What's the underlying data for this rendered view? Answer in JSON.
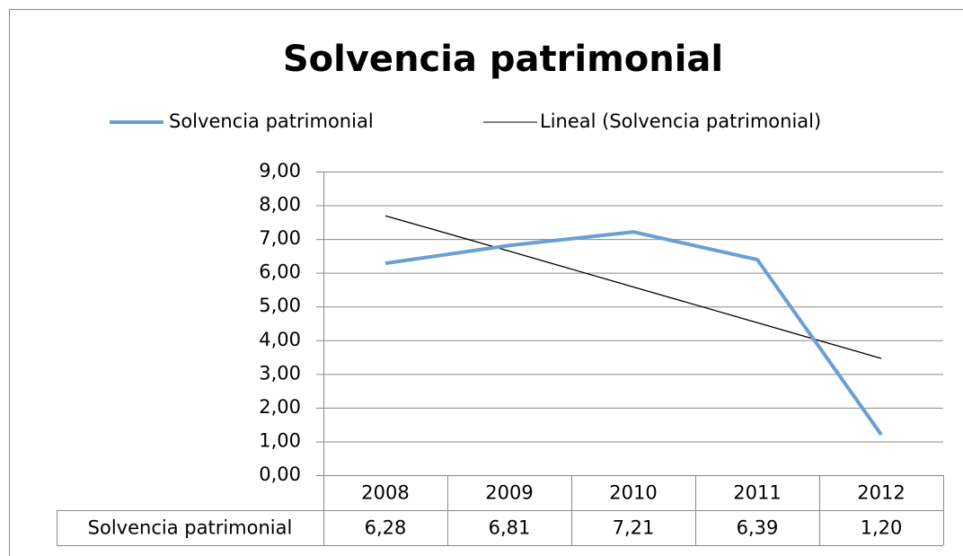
{
  "chart_data": {
    "type": "line",
    "title": "Solvencia patrimonial",
    "categories": [
      "2008",
      "2009",
      "2010",
      "2011",
      "2012"
    ],
    "series": [
      {
        "name": "Solvencia patrimonial",
        "color": "#6a9fd4",
        "values": [
          6.28,
          6.81,
          7.21,
          6.39,
          1.2
        ],
        "value_labels": [
          "6,28",
          "6,81",
          "7,21",
          "6,39",
          "1,20"
        ]
      },
      {
        "name": "Lineal (Solvencia patrimonial)",
        "color": "#000000",
        "values": [
          7.69,
          6.64,
          5.58,
          4.52,
          3.46
        ]
      }
    ],
    "ylim": [
      0,
      9
    ],
    "yticks": [
      {
        "value": 0,
        "label": "0,00"
      },
      {
        "value": 1,
        "label": "1,00"
      },
      {
        "value": 2,
        "label": "2,00"
      },
      {
        "value": 3,
        "label": "3,00"
      },
      {
        "value": 4,
        "label": "4,00"
      },
      {
        "value": 5,
        "label": "5,00"
      },
      {
        "value": 6,
        "label": "6,00"
      },
      {
        "value": 7,
        "label": "7,00"
      },
      {
        "value": 8,
        "label": "8,00"
      },
      {
        "value": 9,
        "label": "9,00"
      }
    ],
    "grid": true
  }
}
